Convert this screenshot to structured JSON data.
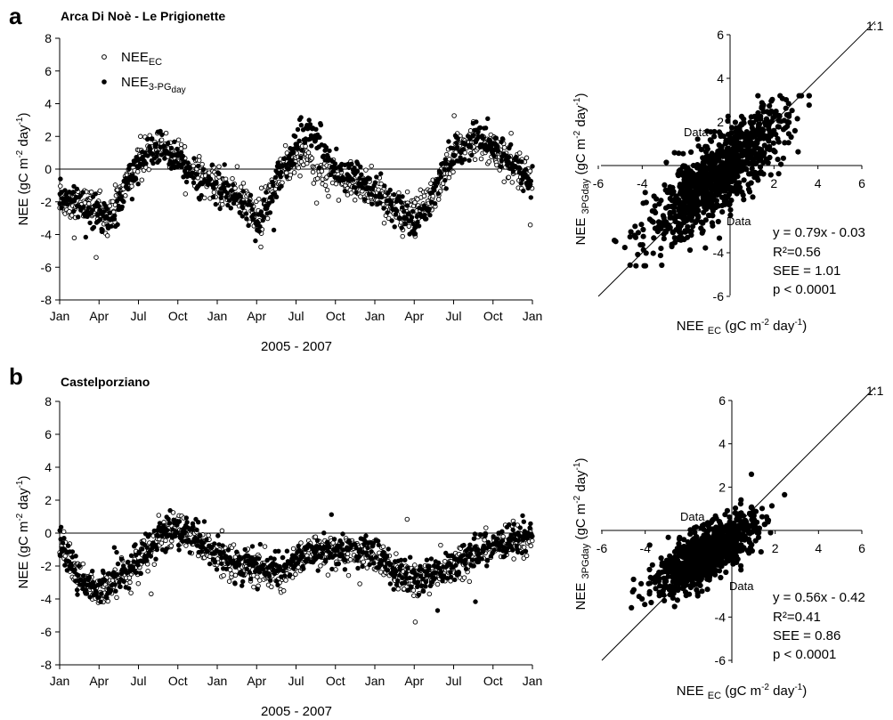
{
  "colors": {
    "ink": "#000000",
    "background": "#ffffff"
  },
  "legend": {
    "ec": {
      "base": "NEE",
      "sub": "EC"
    },
    "pg": {
      "base": "NEE",
      "sub": "3-PG",
      "subsub": "day"
    }
  },
  "time_axis": {
    "ticks": [
      "Jan",
      "Apr",
      "Jul",
      "Oct",
      "Jan",
      "Apr",
      "Jul",
      "Oct",
      "Jan",
      "Apr",
      "Jul",
      "Oct",
      "Jan"
    ],
    "title": "2005 - 2007"
  },
  "y_axis": {
    "ticks": [
      "8",
      "6",
      "4",
      "2",
      "0",
      "-2",
      "-4",
      "-6",
      "-8"
    ],
    "title": "NEE (gC m-2 day-1)"
  },
  "scatter_axis": {
    "ticks": [
      "-6",
      "-4",
      "2",
      "4",
      "6"
    ],
    "xlabel": "NEE EC (gC m-2 day-1)",
    "ylabel": "NEE 3PGday (gC m-2 day-1)",
    "one_to_one": "1:1",
    "stray_label": "Data"
  },
  "panels": [
    {
      "letter": "a",
      "site": "Arca Di Noè - Le Prigionette",
      "stats": {
        "eq": "y = 0.79x - 0.03",
        "r2": "R²=0.56",
        "see": "SEE = 1.01",
        "p": "p < 0.0001"
      }
    },
    {
      "letter": "b",
      "site": "Castelporziano",
      "stats": {
        "eq": "y = 0.56x - 0.42",
        "r2": "R²=0.41",
        "see": "SEE = 0.86",
        "p": "p < 0.0001"
      }
    }
  ],
  "chart_data": [
    {
      "type": "scatter",
      "site": "Arca Di Noè - Le Prigionette",
      "title": "Arca Di Noè - Le Prigionette",
      "xlabel": "2005 - 2007",
      "ylabel": "NEE (gC m-2 day-1)",
      "ylim": [
        -8,
        8
      ],
      "x_ticks": [
        "Jan",
        "Apr",
        "Jul",
        "Oct",
        "Jan",
        "Apr",
        "Jul",
        "Oct",
        "Jan",
        "Apr",
        "Jul",
        "Oct",
        "Jan"
      ],
      "x_units": "days since Jan 2005",
      "x_range": [
        0,
        1095
      ],
      "series": [
        {
          "name": "NEE EC",
          "marker": "open-circle",
          "x": [
            0,
            45,
            90,
            120,
            160,
            200,
            240,
            280,
            330,
            365,
            410,
            455,
            485,
            520,
            560,
            600,
            640,
            680,
            730,
            775,
            820,
            850,
            880,
            920,
            960,
            1000,
            1040,
            1095
          ],
          "y": [
            -1.8,
            -2.0,
            -2.6,
            -2.8,
            -0.6,
            0.8,
            1.4,
            0.6,
            -0.5,
            -1.0,
            -1.6,
            -2.8,
            -1.6,
            0.0,
            0.8,
            -0.2,
            -0.6,
            -1.0,
            -1.4,
            -2.0,
            -2.6,
            -2.2,
            -0.8,
            1.4,
            1.6,
            1.2,
            0.4,
            -0.8
          ]
        },
        {
          "name": "NEE 3-PG day",
          "marker": "filled-circle",
          "x": [
            0,
            45,
            90,
            120,
            160,
            200,
            240,
            280,
            330,
            365,
            410,
            455,
            485,
            520,
            560,
            600,
            640,
            680,
            730,
            775,
            820,
            850,
            880,
            920,
            960,
            1000,
            1040,
            1095
          ],
          "y": [
            -1.4,
            -2.2,
            -3.0,
            -3.2,
            -0.5,
            0.9,
            1.3,
            0.4,
            -0.6,
            -1.1,
            -1.8,
            -3.2,
            -2.0,
            0.2,
            2.0,
            1.8,
            -0.2,
            -0.6,
            -1.2,
            -2.2,
            -3.2,
            -2.6,
            -0.6,
            1.0,
            2.0,
            1.6,
            0.6,
            -1.0
          ]
        }
      ]
    },
    {
      "type": "scatter",
      "site": "Arca Di Noè - Le Prigionette",
      "xlabel": "NEE EC (gC m-2 day-1)",
      "ylabel": "NEE 3PGday (gC m-2 day-1)",
      "xlim": [
        -6,
        6
      ],
      "ylim": [
        -6,
        6
      ],
      "reference_line": "1:1",
      "fit": {
        "slope": 0.79,
        "intercept": -0.03,
        "r2": 0.56,
        "see": 1.01,
        "p": "< 0.0001"
      }
    },
    {
      "type": "scatter",
      "site": "Castelporziano",
      "title": "Castelporziano",
      "xlabel": "2005 - 2007",
      "ylabel": "NEE (gC m-2 day-1)",
      "ylim": [
        -8,
        8
      ],
      "x_ticks": [
        "Jan",
        "Apr",
        "Jul",
        "Oct",
        "Jan",
        "Apr",
        "Jul",
        "Oct",
        "Jan",
        "Apr",
        "Jul",
        "Oct",
        "Jan"
      ],
      "x_units": "days since Jan 2005",
      "x_range": [
        0,
        1095
      ],
      "series": [
        {
          "name": "NEE EC",
          "marker": "open-circle",
          "x": [
            0,
            45,
            90,
            120,
            160,
            200,
            240,
            280,
            330,
            365,
            410,
            455,
            485,
            520,
            560,
            600,
            640,
            680,
            730,
            775,
            820,
            850,
            880,
            920,
            960,
            1000,
            1040,
            1095
          ],
          "y": [
            -0.8,
            -2.4,
            -3.6,
            -3.2,
            -2.4,
            -1.2,
            0.0,
            0.2,
            -0.6,
            -1.6,
            -1.8,
            -2.2,
            -2.6,
            -2.6,
            -1.6,
            -1.0,
            -1.0,
            -1.2,
            -1.2,
            -2.4,
            -3.0,
            -2.8,
            -2.2,
            -1.6,
            -1.2,
            -0.8,
            -0.6,
            -0.4
          ]
        },
        {
          "name": "NEE 3-PG day",
          "marker": "filled-circle",
          "x": [
            0,
            45,
            90,
            120,
            160,
            200,
            240,
            280,
            330,
            365,
            410,
            455,
            485,
            520,
            560,
            600,
            640,
            680,
            730,
            775,
            820,
            850,
            880,
            920,
            960,
            1000,
            1040,
            1095
          ],
          "y": [
            -0.4,
            -2.8,
            -3.2,
            -3.0,
            -2.2,
            -1.0,
            0.0,
            0.2,
            -0.6,
            -1.4,
            -1.8,
            -2.0,
            -2.2,
            -2.0,
            -1.6,
            -1.2,
            -1.0,
            -1.0,
            -1.0,
            -2.2,
            -2.8,
            -2.6,
            -2.4,
            -1.8,
            -1.2,
            -0.8,
            -0.4,
            -0.2
          ]
        }
      ]
    },
    {
      "type": "scatter",
      "site": "Castelporziano",
      "xlabel": "NEE EC (gC m-2 day-1)",
      "ylabel": "NEE 3PGday (gC m-2 day-1)",
      "xlim": [
        -6,
        6
      ],
      "ylim": [
        -6,
        6
      ],
      "reference_line": "1:1",
      "fit": {
        "slope": 0.56,
        "intercept": -0.42,
        "r2": 0.41,
        "see": 0.86,
        "p": "< 0.0001"
      }
    }
  ]
}
